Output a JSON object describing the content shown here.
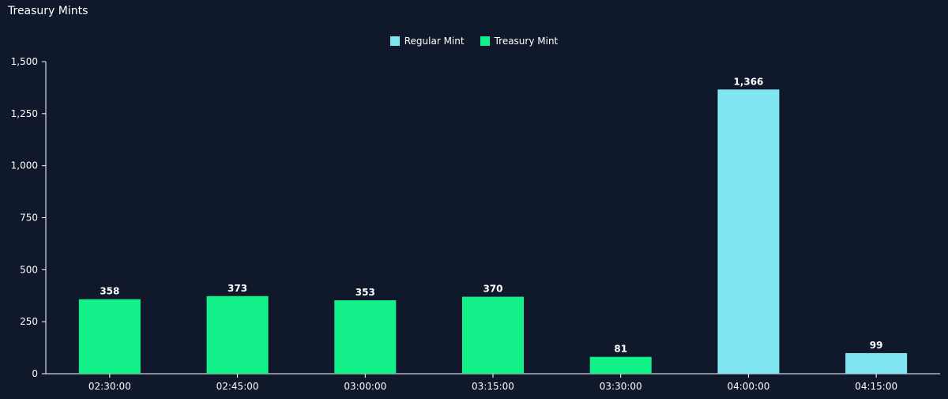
{
  "panel": {
    "title": "Treasury Mints"
  },
  "chart_data": {
    "type": "bar",
    "title": "",
    "xlabel": "",
    "ylabel": "",
    "ylim": [
      0,
      1500
    ],
    "yticks": [
      0,
      250,
      500,
      750,
      1000,
      1250,
      1500
    ],
    "ytick_labels": [
      "0",
      "250",
      "500",
      "750",
      "1,000",
      "1,250",
      "1,500"
    ],
    "grid": false,
    "legend_position": "top-center",
    "categories": [
      "02:30:00",
      "02:45:00",
      "03:00:00",
      "03:15:00",
      "03:30:00",
      "04:00:00",
      "04:15:00"
    ],
    "series": [
      {
        "name": "Regular Mint",
        "color": "#80e6f2",
        "values": [
          0,
          0,
          0,
          0,
          0,
          1366,
          99
        ]
      },
      {
        "name": "Treasury Mint",
        "color": "#14f08a",
        "values": [
          358,
          373,
          353,
          370,
          81,
          0,
          0
        ]
      }
    ],
    "data_labels": [
      "358",
      "373",
      "353",
      "370",
      "81",
      "1,366",
      "99"
    ]
  }
}
